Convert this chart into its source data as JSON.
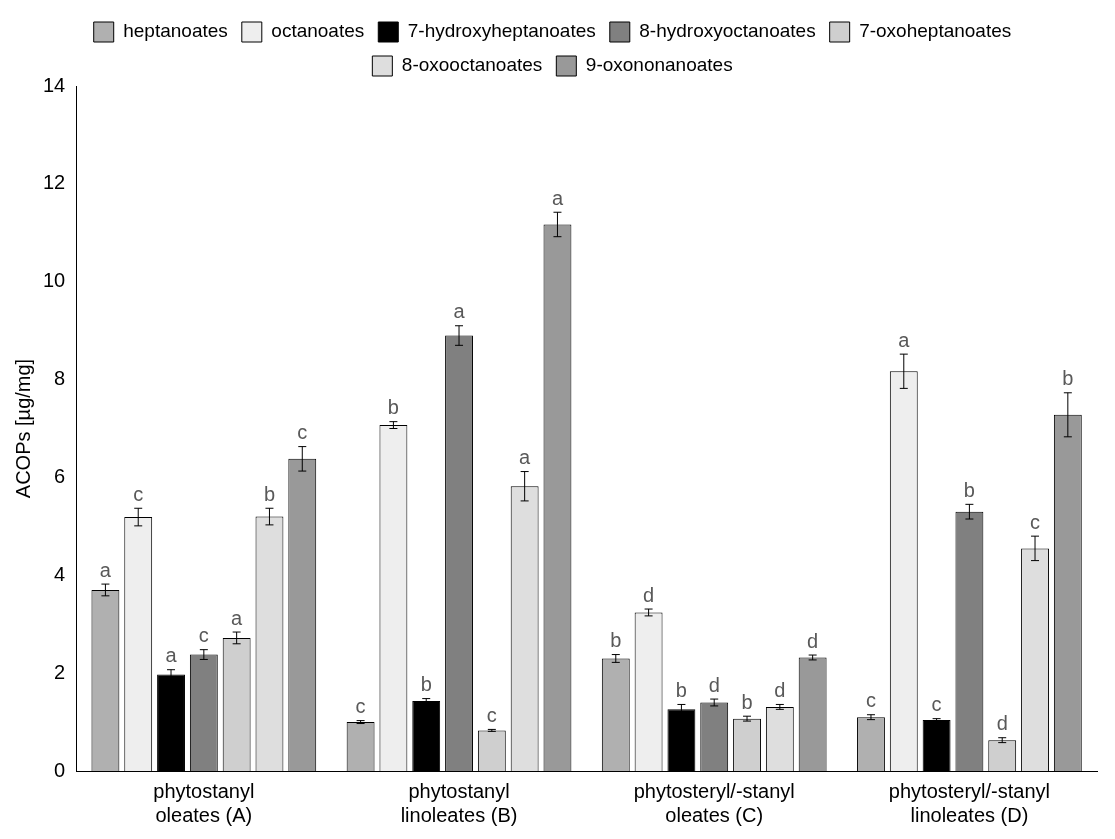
{
  "chart_data": {
    "type": "bar",
    "ylabel": "ACOPs [µg/mg]",
    "categories": [
      "phytostanyl oleates (A)",
      "phytostanyl linoleates (B)",
      "phytosteryl/-stanyl oleates (C)",
      "phytosteryl/-stanyl linoleates (D)"
    ],
    "series": [
      {
        "name": "heptanoates",
        "color": "#b0b0b0",
        "values": [
          3.7,
          1.0,
          2.3,
          1.1
        ],
        "errors": [
          0.12,
          0.03,
          0.08,
          0.05
        ]
      },
      {
        "name": "octanoates",
        "color": "#eeeeee",
        "values": [
          5.19,
          7.07,
          3.24,
          8.17
        ],
        "errors": [
          0.18,
          0.07,
          0.07,
          0.35
        ]
      },
      {
        "name": "7-hydroxyheptanoates",
        "color": "#000000",
        "values": [
          1.97,
          1.43,
          1.26,
          1.04
        ],
        "errors": [
          0.1,
          0.05,
          0.1,
          0.03
        ]
      },
      {
        "name": "8-hydroxyoctanoates",
        "color": "#808080",
        "values": [
          2.38,
          8.9,
          1.4,
          5.3
        ],
        "errors": [
          0.1,
          0.2,
          0.07,
          0.15
        ]
      },
      {
        "name": "7-oxoheptanoates",
        "color": "#cfcfcf",
        "values": [
          2.72,
          0.83,
          1.07,
          0.63
        ],
        "errors": [
          0.12,
          0.02,
          0.05,
          0.05
        ]
      },
      {
        "name": "8-oxooctanoates",
        "color": "#dedede",
        "values": [
          5.2,
          5.82,
          1.31,
          4.55
        ],
        "errors": [
          0.17,
          0.3,
          0.05,
          0.25
        ]
      },
      {
        "name": "9-oxononanoates",
        "color": "#999999",
        "values": [
          6.38,
          11.17,
          2.32,
          7.28
        ],
        "errors": [
          0.25,
          0.25,
          0.05,
          0.45
        ]
      }
    ],
    "ylim": [
      0,
      14
    ],
    "yticks": [
      0,
      2,
      4,
      6,
      8,
      10,
      12,
      14
    ],
    "grid": false,
    "legend": "top",
    "annotations": [
      "a",
      "c",
      "a",
      "c",
      "a",
      "b",
      "c",
      "c",
      "b",
      "b",
      "a",
      "c",
      "a",
      "a",
      "b",
      "d",
      "b",
      "d",
      "b",
      "d",
      "d",
      "c",
      "a",
      "c",
      "b",
      "d",
      "c",
      "b"
    ]
  }
}
